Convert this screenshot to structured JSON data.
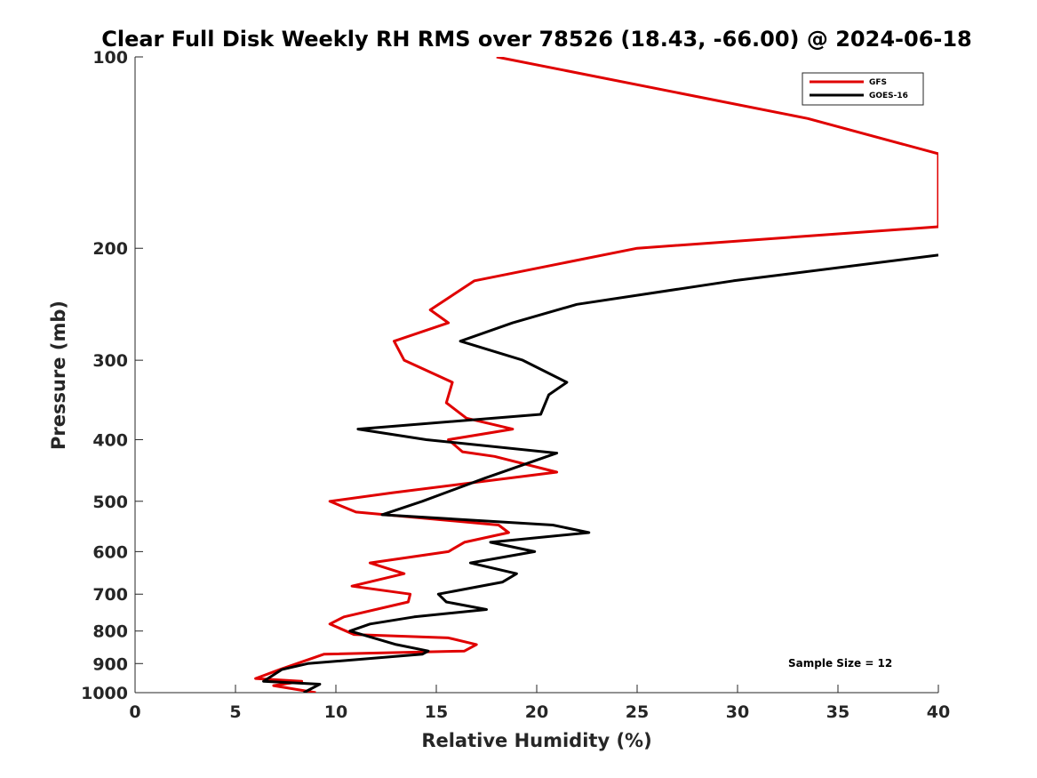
{
  "chart_data": {
    "type": "line",
    "title": "Clear Full Disk Weekly RH RMS over 78526 (18.43, -66.00) @ 2024-06-18",
    "xlabel": "Relative Humidity (%)",
    "ylabel": "Pressure (mb)",
    "xlim": [
      0,
      40
    ],
    "ylim": [
      100,
      1000
    ],
    "y_scale": "log",
    "y_reversed": true,
    "grid": false,
    "legend_placement": "top-right",
    "x_ticks": [
      0,
      5,
      10,
      15,
      20,
      25,
      30,
      35,
      40
    ],
    "y_ticks": [
      100,
      200,
      300,
      400,
      500,
      600,
      700,
      800,
      900,
      1000
    ],
    "annotation": "Sample Size = 12",
    "series": [
      {
        "name": "GFS",
        "color": "#e00000",
        "points": [
          [
            18.0,
            100
          ],
          [
            33.5,
            125
          ],
          [
            40.0,
            142
          ],
          [
            40.0,
            185
          ],
          [
            25.0,
            200
          ],
          [
            16.9,
            225
          ],
          [
            14.7,
            250
          ],
          [
            15.6,
            262
          ],
          [
            12.9,
            280
          ],
          [
            13.4,
            300
          ],
          [
            15.8,
            325
          ],
          [
            15.5,
            350
          ],
          [
            16.5,
            370
          ],
          [
            18.8,
            385
          ],
          [
            15.6,
            400
          ],
          [
            16.3,
            418
          ],
          [
            17.9,
            425
          ],
          [
            21.0,
            450
          ],
          [
            12.8,
            485
          ],
          [
            9.7,
            500
          ],
          [
            11.0,
            520
          ],
          [
            18.1,
            545
          ],
          [
            18.6,
            560
          ],
          [
            16.4,
            580
          ],
          [
            15.6,
            600
          ],
          [
            11.7,
            625
          ],
          [
            13.4,
            650
          ],
          [
            10.8,
            680
          ],
          [
            13.7,
            700
          ],
          [
            13.6,
            720
          ],
          [
            10.4,
            760
          ],
          [
            9.7,
            780
          ],
          [
            10.9,
            810
          ],
          [
            15.6,
            820
          ],
          [
            17.0,
            840
          ],
          [
            16.4,
            860
          ],
          [
            9.4,
            870
          ],
          [
            7.2,
            920
          ],
          [
            6.0,
            950
          ],
          [
            8.3,
            960
          ],
          [
            6.9,
            975
          ],
          [
            9.0,
            1000
          ]
        ]
      },
      {
        "name": "GOES-16",
        "color": "#000000",
        "points": [
          [
            40.0,
            205
          ],
          [
            29.8,
            225
          ],
          [
            22.0,
            245
          ],
          [
            18.8,
            262
          ],
          [
            16.2,
            280
          ],
          [
            19.3,
            300
          ],
          [
            21.5,
            325
          ],
          [
            20.6,
            340
          ],
          [
            20.2,
            365
          ],
          [
            11.1,
            385
          ],
          [
            14.5,
            400
          ],
          [
            21.0,
            420
          ],
          [
            17.4,
            460
          ],
          [
            14.3,
            500
          ],
          [
            12.3,
            525
          ],
          [
            20.8,
            545
          ],
          [
            22.6,
            560
          ],
          [
            17.7,
            580
          ],
          [
            19.9,
            600
          ],
          [
            16.7,
            625
          ],
          [
            19.0,
            650
          ],
          [
            18.3,
            670
          ],
          [
            15.1,
            700
          ],
          [
            15.5,
            720
          ],
          [
            17.5,
            740
          ],
          [
            13.9,
            760
          ],
          [
            11.7,
            780
          ],
          [
            10.7,
            800
          ],
          [
            13.0,
            840
          ],
          [
            14.6,
            860
          ],
          [
            14.3,
            870
          ],
          [
            8.6,
            900
          ],
          [
            7.3,
            920
          ],
          [
            6.4,
            960
          ],
          [
            9.2,
            970
          ],
          [
            8.4,
            1000
          ]
        ]
      }
    ]
  }
}
